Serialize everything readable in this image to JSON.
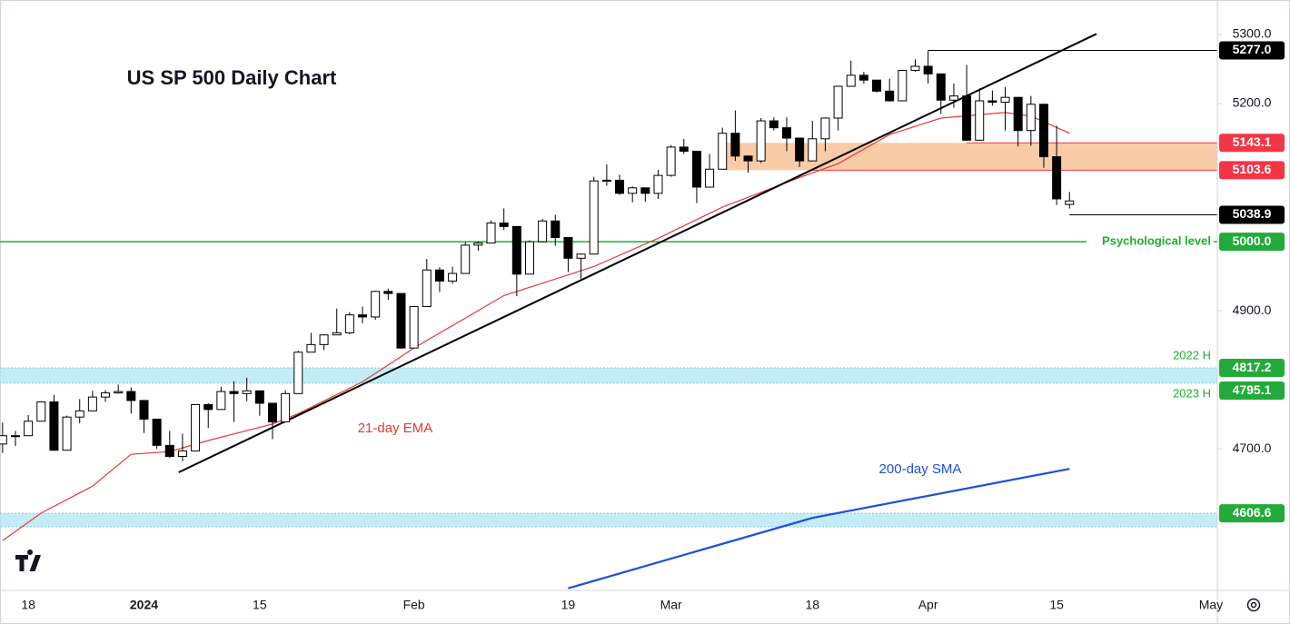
{
  "chart_data": {
    "type": "candlestick",
    "title": "US SP 500 Daily Chart",
    "categories": [
      null,
      null,
      "18",
      null,
      null,
      null,
      null,
      null,
      null,
      null,
      null,
      "2024",
      null,
      null,
      null,
      null,
      null,
      null,
      null,
      null,
      "15",
      null,
      null,
      null,
      null,
      null,
      null,
      null,
      null,
      null,
      null,
      null,
      "Feb",
      null,
      null,
      null,
      null,
      null,
      null,
      null,
      null,
      null,
      null,
      null,
      "19",
      null,
      null,
      null,
      null,
      null,
      null,
      null,
      "Mar",
      null,
      null,
      null,
      null,
      null,
      null,
      null,
      null,
      null,
      null,
      "18",
      null,
      null,
      null,
      null,
      null,
      null,
      null,
      null,
      "Apr",
      null,
      null,
      null,
      null,
      null,
      null,
      null,
      null,
      null,
      "15",
      null,
      null,
      null,
      null,
      null,
      null,
      null,
      null,
      null,
      null,
      null,
      "May"
    ],
    "open": [
      4707,
      4719,
      4719,
      4740,
      4768,
      4698,
      4746,
      4755,
      4775,
      4781,
      4783,
      4770,
      4743,
      4705,
      4689,
      4697,
      4764,
      4757,
      4783,
      4780,
      4784,
      4766,
      4739,
      4780,
      4840,
      4851,
      4865,
      4868,
      4894,
      4891,
      4928,
      4925,
      4846,
      4906,
      4959,
      4943,
      4954,
      4995,
      4998,
      5027,
      5022,
      4953,
      5000,
      5030,
      5006,
      4976,
      4982,
      5088,
      5089,
      5070,
      5078,
      5070,
      5096,
      5137,
      5131,
      5079,
      5105,
      5157,
      5124,
      5117,
      5175,
      5165,
      5150,
      5117,
      5149,
      5179,
      5225,
      5241,
      5234,
      5218,
      5204,
      5248,
      5254,
      5243,
      5205,
      5211,
      5147,
      5204,
      5202,
      5209,
      5161,
      5199,
      5123,
      5054,
      null,
      null,
      null,
      null,
      null,
      null,
      null,
      null,
      null,
      null,
      null
    ],
    "high": [
      4738,
      4726,
      4749,
      4769,
      4778,
      4748,
      4772,
      4784,
      4785,
      4793,
      4789,
      4770,
      4743,
      4726,
      4722,
      4764,
      4766,
      4790,
      4798,
      4803,
      4784,
      4766,
      4785,
      4842,
      4868,
      4866,
      4903,
      4898,
      4906,
      4929,
      4932,
      4925,
      4906,
      4975,
      4963,
      4964,
      4999,
      5000,
      5031,
      5048,
      5022,
      5002,
      5033,
      5039,
      5006,
      4983,
      5094,
      5112,
      5097,
      5080,
      5078,
      5104,
      5140,
      5149,
      5131,
      5127,
      5165,
      5190,
      5125,
      5179,
      5180,
      5180,
      5150,
      5175,
      5180,
      5225,
      5262,
      5246,
      5234,
      5236,
      5249,
      5264,
      5277,
      5243,
      5229,
      5256,
      5222,
      5219,
      5224,
      5209,
      5211,
      5200,
      5168,
      5072,
      null,
      null,
      null,
      null,
      null,
      null,
      null,
      null,
      null,
      null,
      null
    ],
    "low": [
      4694,
      4704,
      4719,
      4740,
      4697,
      4698,
      4737,
      4755,
      4768,
      4780,
      4751,
      4723,
      4700,
      4687,
      4682,
      4697,
      4730,
      4757,
      4739,
      4769,
      4748,
      4714,
      4739,
      4780,
      4840,
      4843,
      4865,
      4866,
      4882,
      4887,
      4916,
      4845,
      4846,
      4906,
      4927,
      4939,
      4954,
      4987,
      4998,
      5017,
      4921,
      4953,
      4999,
      4994,
      4956,
      4946,
      4982,
      5081,
      5068,
      5057,
      5058,
      5062,
      5094,
      5127,
      5056,
      5079,
      5105,
      5117,
      5100,
      5114,
      5161,
      5131,
      5108,
      5117,
      5131,
      5161,
      5225,
      5229,
      5216,
      5203,
      5204,
      5246,
      5229,
      5185,
      5194,
      5146,
      5146,
      5197,
      5161,
      5138,
      5139,
      5107,
      5053,
      5048,
      null,
      null,
      null,
      null,
      null,
      null,
      null,
      null,
      null,
      null,
      null
    ],
    "close": [
      4719,
      4719,
      4740,
      4768,
      4698,
      4746,
      4755,
      4775,
      4781,
      4783,
      4770,
      4743,
      4705,
      4689,
      4697,
      4764,
      4757,
      4783,
      4780,
      4784,
      4766,
      4739,
      4780,
      4840,
      4851,
      4865,
      4868,
      4894,
      4891,
      4928,
      4925,
      4846,
      4906,
      4959,
      4943,
      4954,
      4995,
      4998,
      5027,
      5022,
      4953,
      5000,
      5030,
      5006,
      4976,
      4982,
      5088,
      5089,
      5070,
      5078,
      5070,
      5096,
      5137,
      5131,
      5079,
      5105,
      5157,
      5124,
      5117,
      5175,
      5165,
      5150,
      5117,
      5149,
      5179,
      5225,
      5241,
      5234,
      5218,
      5204,
      5248,
      5254,
      5243,
      5205,
      5211,
      5147,
      5204,
      5202,
      5209,
      5161,
      5199,
      5123,
      5062,
      5059,
      null,
      null,
      null,
      null,
      null,
      null,
      null,
      null,
      null,
      null,
      null
    ],
    "up_color": "#ffffff",
    "down_color": "#000000",
    "xlim": [
      -0.2,
      94.5
    ],
    "ylim": [
      4495,
      5350
    ],
    "yticks": [
      {
        "value": 5300,
        "label": "5300.0"
      },
      {
        "value": 5200,
        "label": "5200.0"
      },
      {
        "value": 4900,
        "label": "4900.0"
      },
      {
        "value": 4700,
        "label": "4700.0"
      }
    ],
    "series": [
      {
        "name": "21-day EMA",
        "color": "#e53935",
        "x": [
          0,
          3,
          7,
          10,
          13,
          16,
          21,
          23,
          28,
          32,
          39,
          46,
          51,
          56,
          62,
          65,
          69,
          73,
          78,
          80,
          83
        ],
        "values": [
          4567,
          4607,
          4646,
          4692,
          4696,
          4712,
          4736,
          4751,
          4797,
          4846,
          4922,
          4964,
          5005,
          5050,
          5093,
          5113,
          5155,
          5179,
          5187,
          5182,
          5157
        ]
      },
      {
        "name": "200-day SMA",
        "color": "#1e4fd8",
        "x": [
          44,
          63,
          83
        ],
        "values": [
          4498,
          4600,
          4671
        ]
      }
    ],
    "trendline": {
      "color": "#000000",
      "x": [
        13.7,
        85.1
      ],
      "values": [
        4666,
        5301
      ]
    },
    "zones": [
      {
        "top": 5143.1,
        "bottom": 5103.6,
        "x": 56,
        "color": "#f9cba7"
      },
      {
        "top": 4817.2,
        "bottom": 4795.1,
        "x": -0.2,
        "color": "#c4ecf6"
      },
      {
        "top": 4606.6,
        "bottom": 4587,
        "x": -0.2,
        "color": "#c4ecf6"
      }
    ],
    "levels": [
      {
        "value": 5277,
        "label": "5277.0",
        "x": 72,
        "color": "#000000"
      },
      {
        "value": 5143.1,
        "label": "5143.1",
        "x": 75,
        "color": "#f23645"
      },
      {
        "value": 5103.6,
        "label": "5103.6",
        "x": 63,
        "color": "#f23645"
      },
      {
        "value": 5038.9,
        "label": "5038.9",
        "x": 83,
        "color": "#000000"
      },
      {
        "value": 5000,
        "label": "5000.0",
        "x": -0.2,
        "color": "#1fae2f",
        "note": "Psychological level"
      },
      {
        "value": 4817.2,
        "label": "4817.2",
        "color": "#1fae2f",
        "note": "2022 H"
      },
      {
        "value": 4795.1,
        "label": "4795.1",
        "color": "#1fae2f",
        "note": "2023 H"
      },
      {
        "value": 4606.6,
        "label": "4606.6",
        "color": "#1fae2f"
      }
    ]
  }
}
